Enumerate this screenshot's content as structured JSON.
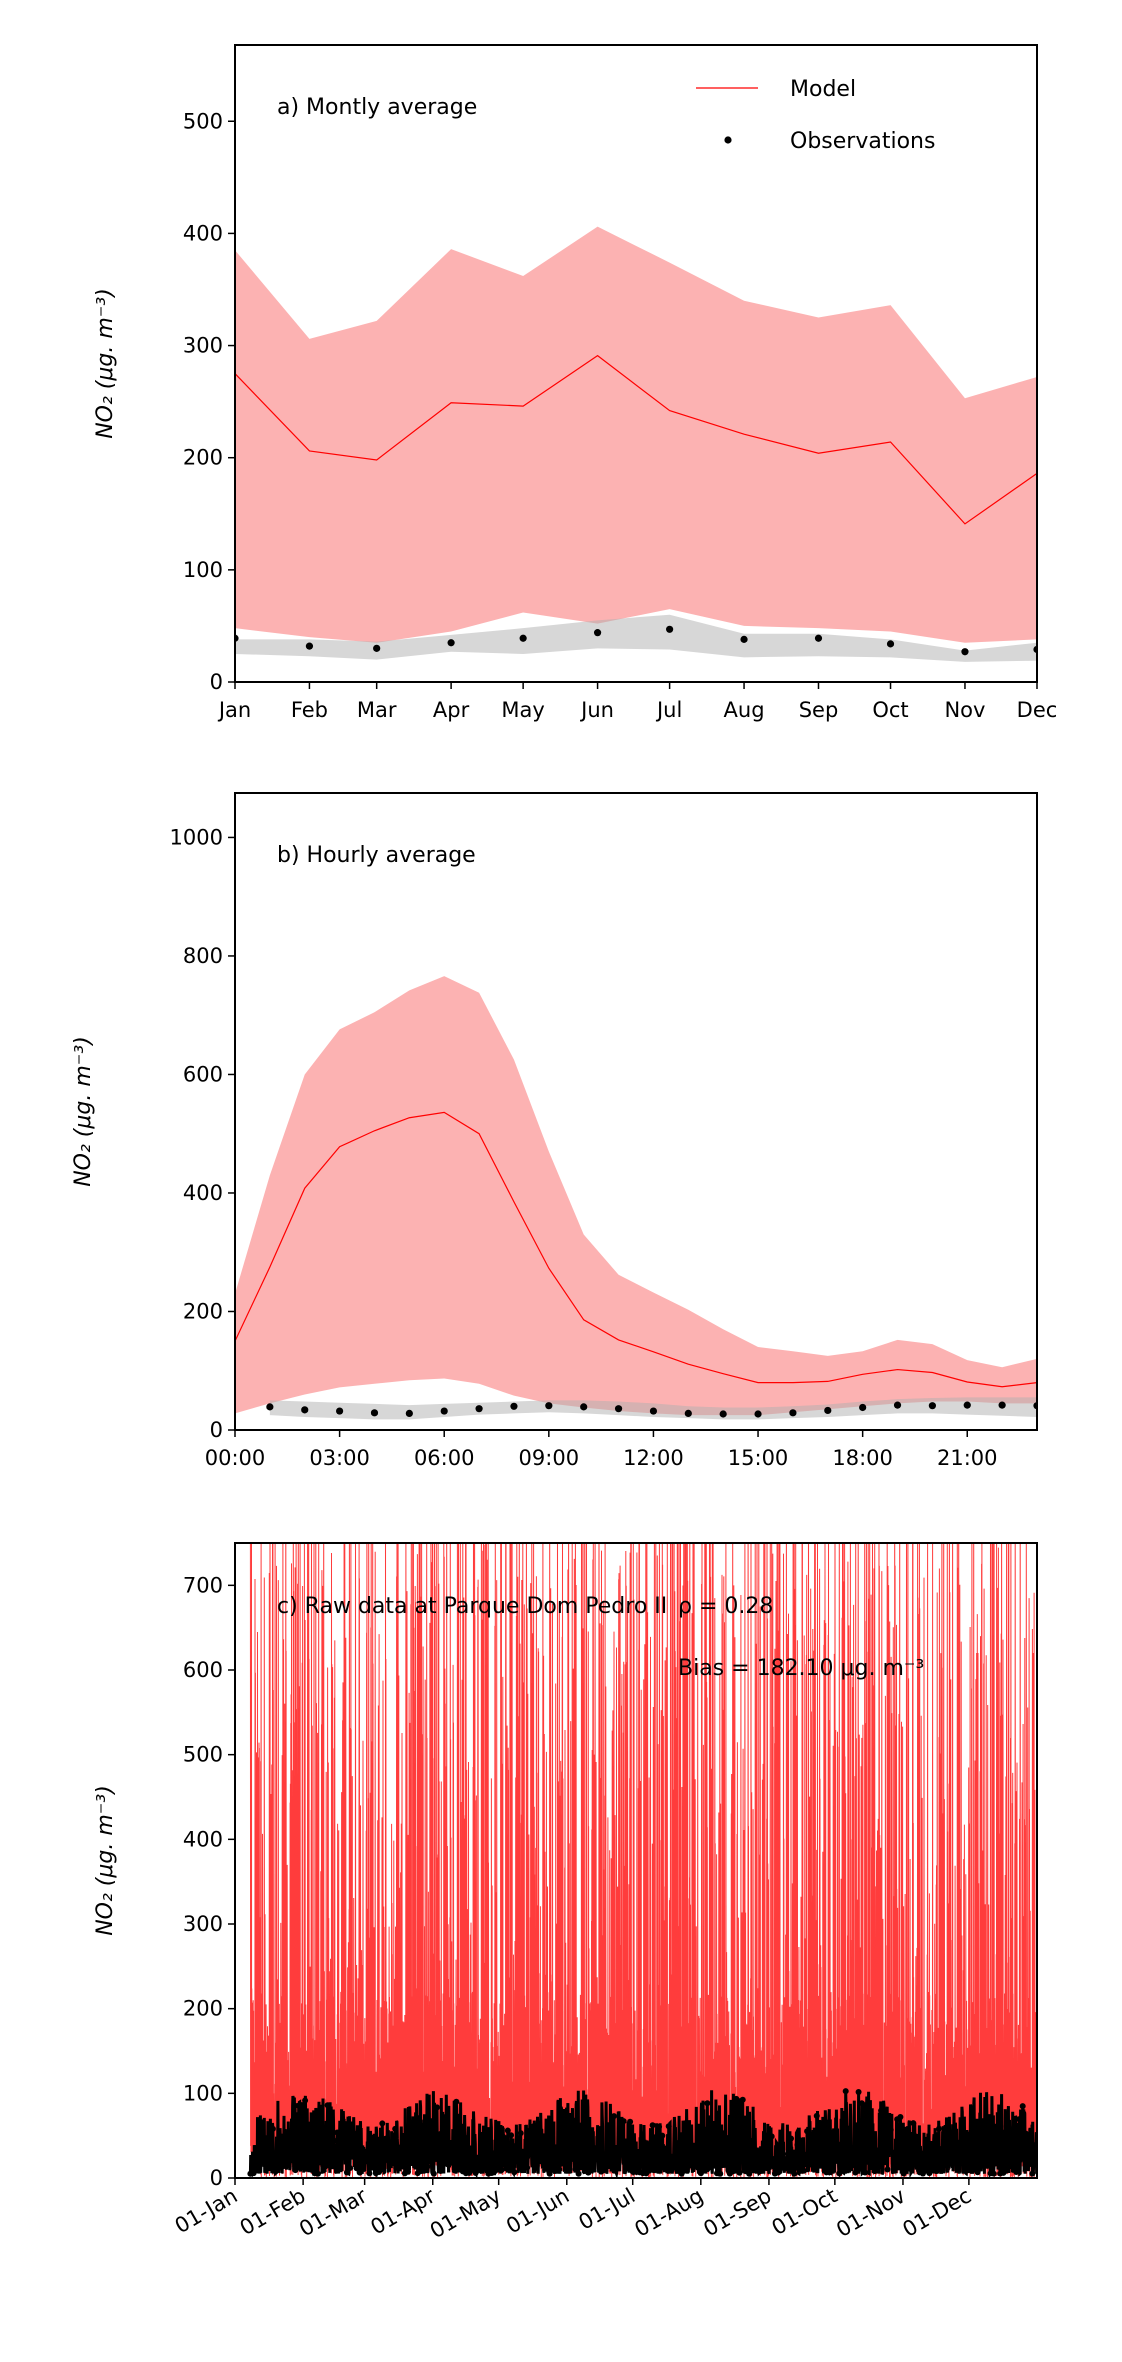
{
  "chart_data": [
    {
      "type": "line",
      "panel": "a",
      "title": "a) Montly average",
      "ylabel": "NO₂ (μg. m⁻³)",
      "xlabel": "",
      "categories": [
        "Jan",
        "Feb",
        "Mar",
        "Apr",
        "May",
        "Jun",
        "Jul",
        "Aug",
        "Sep",
        "Oct",
        "Nov",
        "Dec"
      ],
      "x": [
        0,
        31,
        59,
        90,
        120,
        151,
        181,
        212,
        243,
        273,
        304,
        334
      ],
      "xlim": [
        0,
        334
      ],
      "ylim": [
        0,
        568
      ],
      "yticks": [
        0,
        100,
        200,
        300,
        400,
        500
      ],
      "legend": {
        "placement": "top-right",
        "entries": [
          "Model",
          "Observations"
        ]
      },
      "series": [
        {
          "name": "Model",
          "kind": "line",
          "color": "#ff0000",
          "values": [
            275,
            206,
            198,
            249,
            246,
            291,
            242,
            221,
            204,
            214,
            141,
            186
          ]
        },
        {
          "name": "Model range",
          "kind": "band",
          "color": "#fcaaaa",
          "upper": [
            385,
            306,
            322,
            386,
            362,
            406,
            374,
            340,
            325,
            336,
            253,
            272
          ],
          "lower": [
            48,
            40,
            35,
            45,
            62,
            52,
            65,
            50,
            48,
            45,
            35,
            38
          ]
        },
        {
          "name": "Observation range",
          "kind": "band",
          "color": "#b0b0b0",
          "upper": [
            38,
            38,
            36,
            42,
            48,
            55,
            60,
            43,
            43,
            38,
            28,
            35
          ],
          "lower": [
            25,
            23,
            20,
            27,
            25,
            30,
            29,
            22,
            23,
            22,
            18,
            19
          ]
        },
        {
          "name": "Observations",
          "kind": "scatter",
          "color": "#000000",
          "values": [
            39,
            32,
            30,
            35,
            39,
            44,
            47,
            38,
            39,
            34,
            27,
            29
          ]
        }
      ]
    },
    {
      "type": "line",
      "panel": "b",
      "title": "b) Hourly average",
      "ylabel": "NO₂ (μg. m⁻³)",
      "xlabel": "",
      "x": [
        0,
        1,
        2,
        3,
        4,
        5,
        6,
        7,
        8,
        9,
        10,
        11,
        12,
        13,
        14,
        15,
        16,
        17,
        18,
        19,
        20,
        21,
        22,
        23
      ],
      "xticks": [
        0,
        3,
        6,
        9,
        12,
        15,
        18,
        21
      ],
      "xticklabels": [
        "00:00",
        "03:00",
        "06:00",
        "09:00",
        "12:00",
        "15:00",
        "18:00",
        "21:00"
      ],
      "xlim": [
        0,
        23
      ],
      "ylim": [
        0,
        1075
      ],
      "yticks": [
        0,
        200,
        400,
        600,
        800,
        1000
      ],
      "series": [
        {
          "name": "Model",
          "kind": "line",
          "color": "#ff0000",
          "values": [
            150,
            275,
            408,
            478,
            505,
            527,
            536,
            500,
            385,
            273,
            186,
            152,
            132,
            111,
            95,
            80,
            80,
            82,
            94,
            102,
            97,
            81,
            73,
            80
          ]
        },
        {
          "name": "Model range",
          "kind": "band",
          "color": "#fcaaaa",
          "upper": [
            230,
            430,
            600,
            676,
            705,
            742,
            766,
            738,
            625,
            470,
            330,
            262,
            232,
            203,
            170,
            140,
            133,
            125,
            133,
            152,
            145,
            118,
            106,
            120
          ],
          "lower": [
            28,
            45,
            60,
            72,
            78,
            84,
            87,
            78,
            58,
            45,
            38,
            32,
            28,
            25,
            25,
            25,
            30,
            35,
            40,
            45,
            48,
            48,
            45,
            45
          ]
        },
        {
          "name": "Observation range",
          "kind": "band",
          "color": "#b0b0b0",
          "x0": 1,
          "upper": [
            50,
            48,
            46,
            44,
            42,
            44,
            46,
            48,
            50,
            50,
            48,
            45,
            40,
            38,
            38,
            40,
            43,
            48,
            52,
            54,
            55,
            55,
            55
          ],
          "lower": [
            25,
            22,
            20,
            18,
            18,
            22,
            26,
            28,
            30,
            28,
            25,
            22,
            20,
            18,
            18,
            20,
            22,
            25,
            28,
            28,
            26,
            24,
            22
          ]
        },
        {
          "name": "Observations",
          "kind": "scatter",
          "color": "#000000",
          "x0": 1,
          "values": [
            39,
            34,
            32,
            29,
            28,
            32,
            36,
            40,
            41,
            39,
            36,
            32,
            28,
            27,
            27,
            29,
            33,
            38,
            42,
            41,
            42,
            42,
            41
          ]
        }
      ]
    },
    {
      "type": "line",
      "panel": "c",
      "title": "c) Raw data at Parque Dom Pedro II",
      "stat_r": "ρ = 0.28",
      "stat_bias": "Bias = 182.10 μg. m⁻³",
      "ylabel": "NO₂ (μg. m⁻³)",
      "xticks": [
        0,
        31,
        59,
        90,
        120,
        151,
        181,
        212,
        243,
        273,
        304,
        334
      ],
      "xticklabels": [
        "01-Jan",
        "01-Feb",
        "01-Mar",
        "01-Apr",
        "01-May",
        "01-Jun",
        "01-Jul",
        "01-Aug",
        "01-Sep",
        "01-Oct",
        "01-Nov",
        "01-Dec"
      ],
      "xlim": [
        0,
        365
      ],
      "ylim": [
        0,
        750
      ],
      "yticks": [
        0,
        100,
        200,
        300,
        400,
        500,
        600,
        700
      ],
      "series": [
        {
          "name": "Model (hourly)",
          "kind": "line",
          "color": "#ff0000",
          "typical_range": [
            0,
            750
          ]
        },
        {
          "name": "Observations (hourly)",
          "kind": "scatter",
          "color": "#000000",
          "typical_range": [
            0,
            125
          ]
        }
      ]
    }
  ]
}
